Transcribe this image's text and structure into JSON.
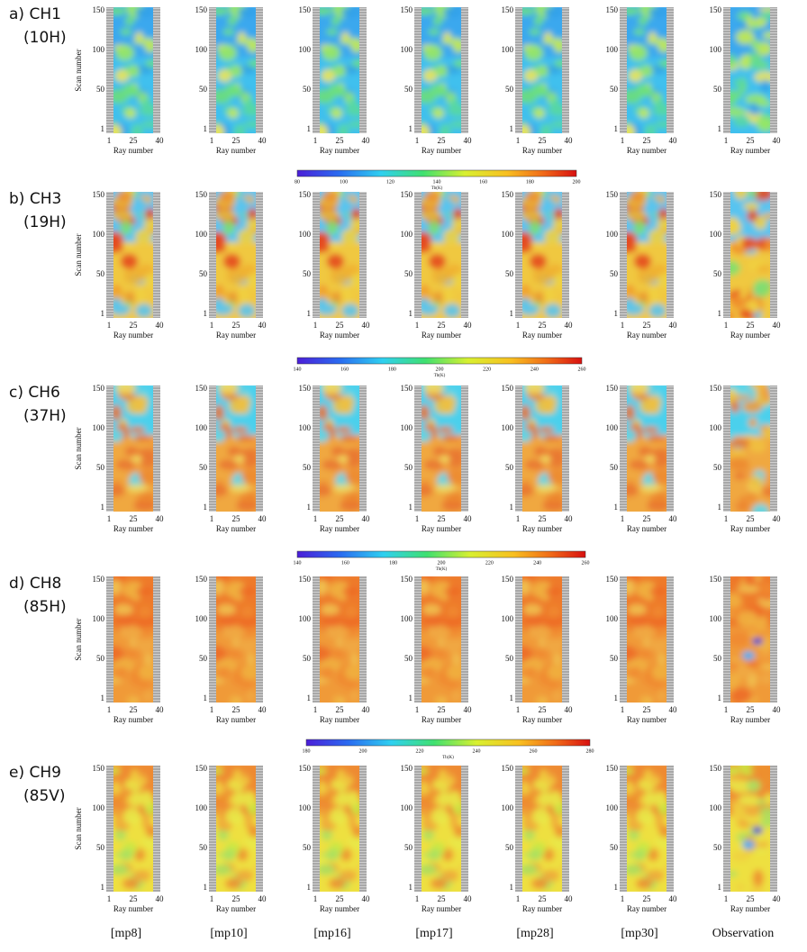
{
  "rows": [
    {
      "label": "a) CH1",
      "sublabel": "(10H)"
    },
    {
      "label": "b) CH3",
      "sublabel": "(19H)"
    },
    {
      "label": "c) CH6",
      "sublabel": "(37H)"
    },
    {
      "label": "d) CH8",
      "sublabel": "(85H)"
    },
    {
      "label": "e) CH9",
      "sublabel": "(85V)"
    }
  ],
  "columns": [
    "[mp8]",
    "[mp10]",
    "[mp16]",
    "[mp17]",
    "[mp28]",
    "[mp30]",
    "Observation"
  ],
  "y_axis": {
    "label": "Scan number",
    "ticks": [
      "150",
      "100",
      "50",
      "1"
    ]
  },
  "x_axis": {
    "label": "Ray number",
    "ticks": [
      "1",
      "25",
      "40"
    ]
  },
  "colorbars": [
    {
      "ticks": [
        80,
        100,
        120,
        140,
        160,
        180,
        200
      ],
      "label": "Tb(K)"
    },
    {
      "ticks": [
        140,
        160,
        180,
        200,
        220,
        240,
        260
      ],
      "label": "Tb(K)"
    },
    {
      "ticks": [
        140,
        160,
        180,
        200,
        220,
        240,
        260
      ],
      "label": "Tb(K)"
    },
    {
      "ticks": [
        180,
        200,
        220,
        240,
        260,
        280
      ],
      "label": "Tb(K)"
    }
  ]
}
